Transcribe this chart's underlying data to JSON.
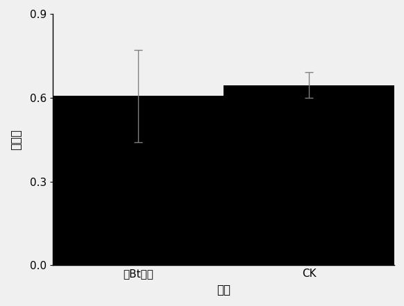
{
  "categories": [
    "转Bt基因",
    "CK"
  ],
  "values": [
    0.606,
    0.645
  ],
  "errors": [
    0.165,
    0.045
  ],
  "bar_color": "#000000",
  "bar_width": 0.5,
  "ylim": [
    0.0,
    0.9
  ],
  "yticks": [
    0.0,
    0.3,
    0.6,
    0.9
  ],
  "xlabel": "处理",
  "ylabel": "卵化率",
  "background_color": "#f0f0f0",
  "error_cap_size": 4,
  "xlabel_fontsize": 12,
  "ylabel_fontsize": 12,
  "tick_fontsize": 11,
  "bar_positions": [
    0.25,
    0.75
  ]
}
